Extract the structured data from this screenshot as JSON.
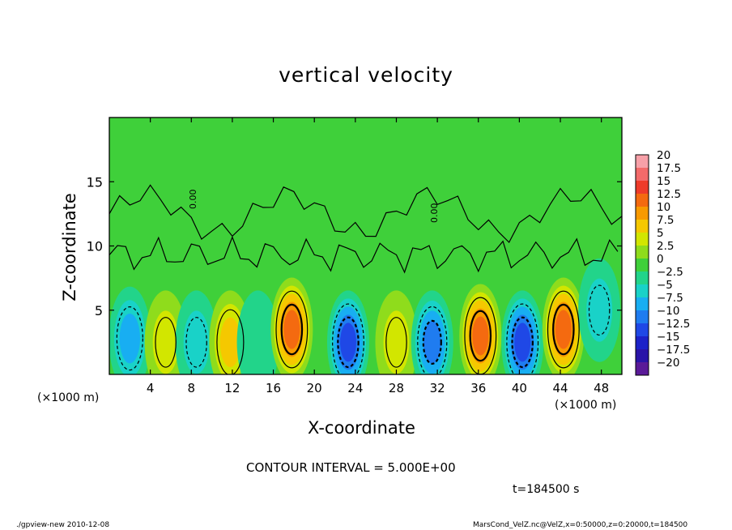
{
  "chart_data": {
    "type": "heatmap",
    "title": "vertical velocity",
    "xlabel": "X-coordinate",
    "ylabel": "Z-coordinate",
    "x_unit_label": "(×1000 m)",
    "x_ticks": [
      4,
      8,
      12,
      16,
      20,
      24,
      28,
      32,
      36,
      40,
      44,
      48
    ],
    "y_ticks": [
      5,
      10,
      15
    ],
    "xlim": [
      0,
      50
    ],
    "ylim": [
      0,
      20
    ],
    "colorbar": {
      "levels": [
        "20",
        "17.5",
        "15",
        "12.5",
        "10",
        "7.5",
        "5",
        "2.5",
        "0",
        "−2.5",
        "−5",
        "−7.5",
        "−10",
        "−12.5",
        "−15",
        "−17.5",
        "−20"
      ],
      "colors": [
        "#f7a0a8",
        "#f36a6a",
        "#ee3b2a",
        "#f46a10",
        "#f89a00",
        "#f5c800",
        "#d2e600",
        "#8fdc1c",
        "#3fd03a",
        "#22d48a",
        "#19d2c8",
        "#18aef2",
        "#1f7cf0",
        "#1f48e6",
        "#1c22c8",
        "#2a14a8",
        "#5a1a98"
      ]
    },
    "cells": [
      {
        "x": 2,
        "z": 2.8,
        "w": -7.5
      },
      {
        "x": 5.5,
        "z": 2.5,
        "w": 5
      },
      {
        "x": 8.5,
        "z": 2.5,
        "w": -5
      },
      {
        "x": 11.8,
        "z": 2.5,
        "w": 8
      },
      {
        "x": 14.5,
        "z": 2.5,
        "w": -2.5
      },
      {
        "x": 17.8,
        "z": 3.5,
        "w": 12.5
      },
      {
        "x": 23.3,
        "z": 2.5,
        "w": -12.5
      },
      {
        "x": 28,
        "z": 2.5,
        "w": 5
      },
      {
        "x": 31.5,
        "z": 2.5,
        "w": -10
      },
      {
        "x": 36.2,
        "z": 3,
        "w": 12.5
      },
      {
        "x": 40.3,
        "z": 2.5,
        "w": -12.5
      },
      {
        "x": 44.3,
        "z": 3.5,
        "w": 12.5
      },
      {
        "x": 47.8,
        "z": 5,
        "w": -5
      }
    ]
  },
  "contour_interval_text": "CONTOUR INTERVAL = 5.000E+00",
  "time_text": "t=184500 s",
  "footer_left": "./gpview-new   2010-12-08",
  "footer_right": "MarsCond_VelZ.nc@VelZ,x=0:50000,z=0:20000,t=184500",
  "contour_labels": [
    "0.00",
    "0.00"
  ]
}
